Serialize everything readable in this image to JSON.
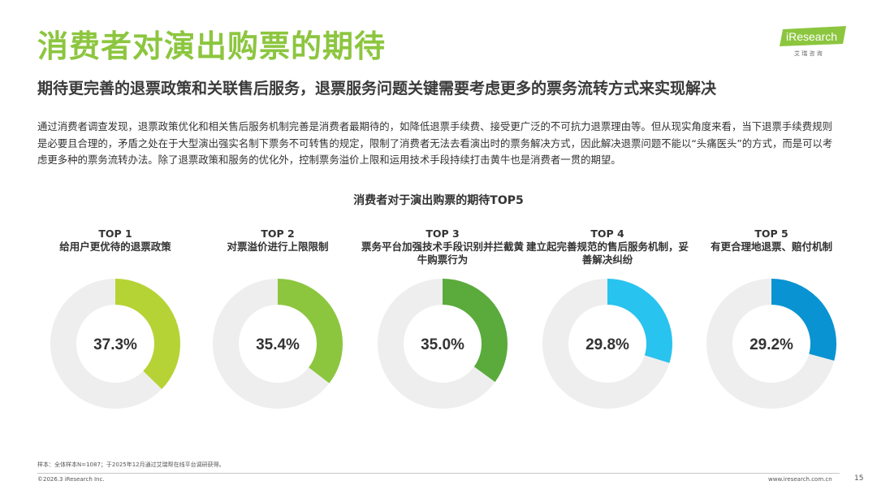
{
  "title": "消费者对演出购票的期待",
  "subtitle": "期待更完善的退票政策和关联售后服务，退票服务问题关键需要考虑更多的票务流转方式来实现解决",
  "body_text": "通过消费者调查发现，退票政策优化和相关售后服务机制完善是消费者最期待的，如降低退票手续费、接受更广泛的不可抗力退票理由等。但从现实角度来看，当下退票手续费规则是必要且合理的，矛盾之处在于大型演出强实名制下票务不可转售的规定，限制了消费者无法去看演出时的票务解决方式，因此解决退票问题不能以“头痛医头”的方式，而是可以考虑更多种的票务流转办法。除了退票政策和服务的优化外，控制票务溢价上限和运用技术手段持续打击黄牛也是消费者一贯的期望。",
  "logo": {
    "brand": "iResearch",
    "tagline": "艾 瑞 咨 询",
    "color": "#8cc63f"
  },
  "chart_data": {
    "type": "pie",
    "title": "消费者对于演出购票的期待TOP5",
    "track_color": "#eeeeee",
    "items": [
      {
        "rank": "TOP 1",
        "label": "给用户更优待的退票政策",
        "value": 37.3,
        "display": "37.3%",
        "color": "#b5d334"
      },
      {
        "rank": "TOP 2",
        "label": "对票溢价进行上限限制",
        "value": 35.4,
        "display": "35.4%",
        "color": "#8cc63f"
      },
      {
        "rank": "TOP 3",
        "label": "票务平台加强技术手段识别并拦截黄牛购票行为",
        "value": 35.0,
        "display": "35.0%",
        "color": "#5aaa3c"
      },
      {
        "rank": "TOP 4",
        "label": "建立起完善规范的售后服务机制，妥善解决纠纷",
        "value": 29.8,
        "display": "29.8%",
        "color": "#29c3ef"
      },
      {
        "rank": "TOP 5",
        "label": "有更合理地退票、赔付机制",
        "value": 29.2,
        "display": "29.2%",
        "color": "#0a93d2"
      }
    ]
  },
  "footer": {
    "note": "样本：全体样本N=1087；于2025年12月通过艾瑞帮在线平台调研获得。",
    "copyright": "©2026.3 iResearch Inc.",
    "website": "www.iresearch.com.cn",
    "page_number": "15"
  }
}
